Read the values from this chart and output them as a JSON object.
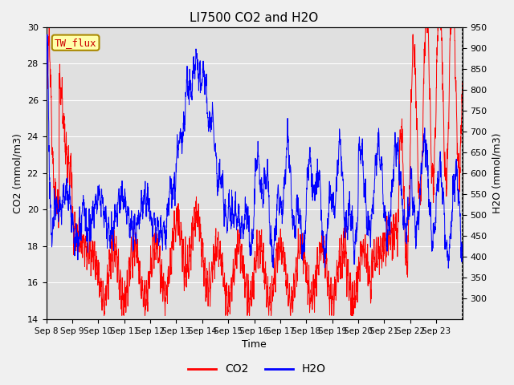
{
  "title": "LI7500 CO2 and H2O",
  "xlabel": "Time",
  "ylabel_left": "CO2 (mmol/m3)",
  "ylabel_right": "H2O (mmol/m3)",
  "ylim_left": [
    14,
    30
  ],
  "ylim_right": [
    250,
    950
  ],
  "yticks_left": [
    14,
    16,
    18,
    20,
    22,
    24,
    26,
    28,
    30
  ],
  "yticks_right": [
    300,
    350,
    400,
    450,
    500,
    550,
    600,
    650,
    700,
    750,
    800,
    850,
    900,
    950
  ],
  "xtick_labels": [
    "Sep 8",
    "Sep 9",
    "Sep 10",
    "Sep 11",
    "Sep 12",
    "Sep 13",
    "Sep 14",
    "Sep 15",
    "Sep 16",
    "Sep 17",
    "Sep 18",
    "Sep 19",
    "Sep 20",
    "Sep 21",
    "Sep 22",
    "Sep 23"
  ],
  "co2_color": "#ff0000",
  "h2o_color": "#0000ff",
  "plot_bg_color": "#e0e0e0",
  "fig_bg_color": "#f0f0f0",
  "legend_label_co2": "CO2",
  "legend_label_h2o": "H2O",
  "site_label": "TW_flux",
  "grid_color": "#ffffff",
  "title_fontsize": 11,
  "axis_fontsize": 9,
  "tick_fontsize": 8
}
